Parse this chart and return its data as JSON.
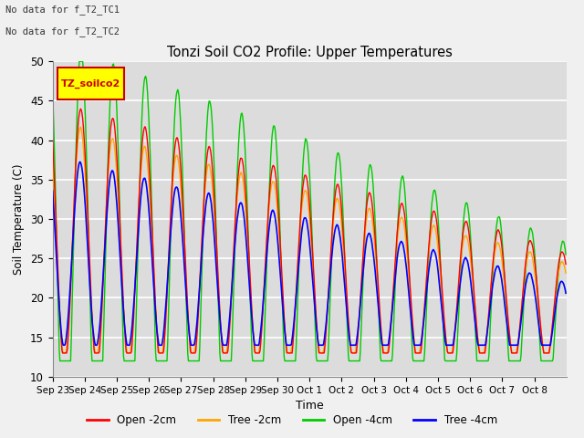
{
  "title": "Tonzi Soil CO2 Profile: Upper Temperatures",
  "ylabel": "Soil Temperature (C)",
  "xlabel": "Time",
  "ylim": [
    10,
    50
  ],
  "annotation_text1": "No data for f_T2_TC1",
  "annotation_text2": "No data for f_T2_TC2",
  "legend_box_label": "TZ_soilco2",
  "legend_box_color": "#ffff00",
  "legend_box_border": "#cc0000",
  "series": {
    "open_2cm": {
      "label": "Open -2cm",
      "color": "#ff0000"
    },
    "tree_2cm": {
      "label": "Tree -2cm",
      "color": "#ffa500"
    },
    "open_4cm": {
      "label": "Open -4cm",
      "color": "#00cc00"
    },
    "tree_4cm": {
      "label": "Tree -4cm",
      "color": "#0000ff"
    }
  },
  "bg_color": "#dcdcdc",
  "fig_bg_color": "#f0f0f0",
  "grid_color": "#ffffff",
  "yticks": [
    10,
    15,
    20,
    25,
    30,
    35,
    40,
    45,
    50
  ]
}
